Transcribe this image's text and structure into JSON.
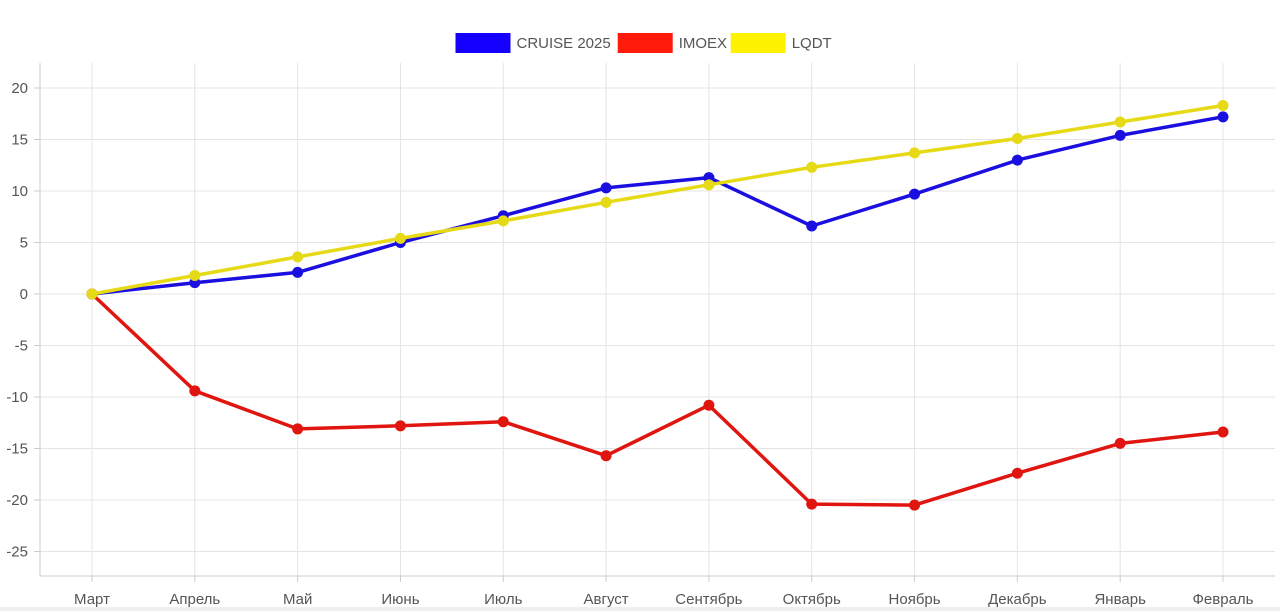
{
  "chart_data": {
    "type": "line",
    "categories": [
      "Март",
      "Апрель",
      "Май",
      "Июнь",
      "Июль",
      "Август",
      "Сентябрь",
      "Октябрь",
      "Ноябрь",
      "Декабрь",
      "Январь",
      "Февраль"
    ],
    "series": [
      {
        "name": "CRUISE 2025",
        "color": "#1a0fe0",
        "legend_color": "#1500ff",
        "values": [
          0,
          1.1,
          2.1,
          5.0,
          7.6,
          10.3,
          11.3,
          6.6,
          9.7,
          13.0,
          15.4,
          17.2
        ]
      },
      {
        "name": "IMOEX",
        "color": "#e0150f",
        "legend_color": "#ff1a0a",
        "values": [
          0,
          -9.4,
          -13.1,
          -12.8,
          -12.4,
          -15.7,
          -10.8,
          -20.4,
          -20.5,
          -17.4,
          -14.5,
          -13.4
        ]
      },
      {
        "name": "LQDT",
        "color": "#e6da16",
        "legend_color": "#fff200",
        "values": [
          0,
          1.8,
          3.6,
          5.4,
          7.1,
          8.9,
          10.6,
          12.3,
          13.7,
          15.1,
          16.7,
          18.3
        ]
      }
    ],
    "yticks": [
      "20",
      "15",
      "10",
      "5",
      "0",
      "-5",
      "-10",
      "-15",
      "-20",
      "-25"
    ],
    "ylim": [
      -27.5,
      22.5
    ],
    "grid": true,
    "legend_position": "top-center",
    "title": "",
    "xlabel": "",
    "ylabel": ""
  }
}
